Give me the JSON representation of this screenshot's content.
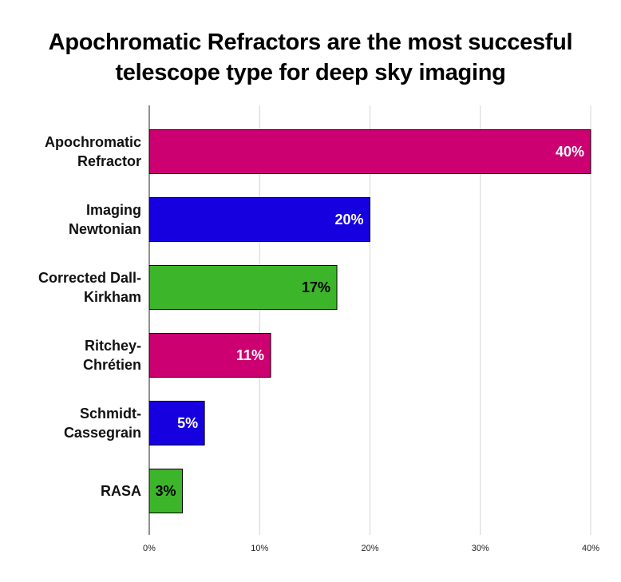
{
  "title_lines": [
    "Apochromatic Refractors are the most succesful",
    "telescope type for deep sky imaging"
  ],
  "chart_data": {
    "type": "bar",
    "orientation": "horizontal",
    "title": "Apochromatic Refractors are the most succesful telescope type for deep sky imaging",
    "categories": [
      [
        "Apochromatic",
        "Refractor"
      ],
      [
        "Imaging",
        "Newtonian"
      ],
      [
        "Corrected Dall-",
        "Kirkham"
      ],
      [
        "Ritchey-",
        "Chrétien"
      ],
      [
        "Schmidt-",
        "Cassegrain"
      ],
      [
        "RASA"
      ]
    ],
    "values": [
      40,
      20,
      17,
      11,
      5,
      3
    ],
    "value_labels": [
      "40%",
      "20%",
      "17%",
      "11%",
      "5%",
      "3%"
    ],
    "colors": [
      "#cc0070",
      "#1600e0",
      "#3db52b",
      "#cc0070",
      "#1600e0",
      "#3db52b"
    ],
    "value_label_colors": [
      "#ffffff",
      "#ffffff",
      "#000000",
      "#ffffff",
      "#ffffff",
      "#000000"
    ],
    "xlim": [
      0,
      40
    ],
    "xticks": [
      0,
      10,
      20,
      30,
      40
    ],
    "xtick_labels": [
      "0%",
      "10%",
      "20%",
      "30%",
      "40%"
    ],
    "grid": true,
    "xlabel": "",
    "ylabel": ""
  }
}
